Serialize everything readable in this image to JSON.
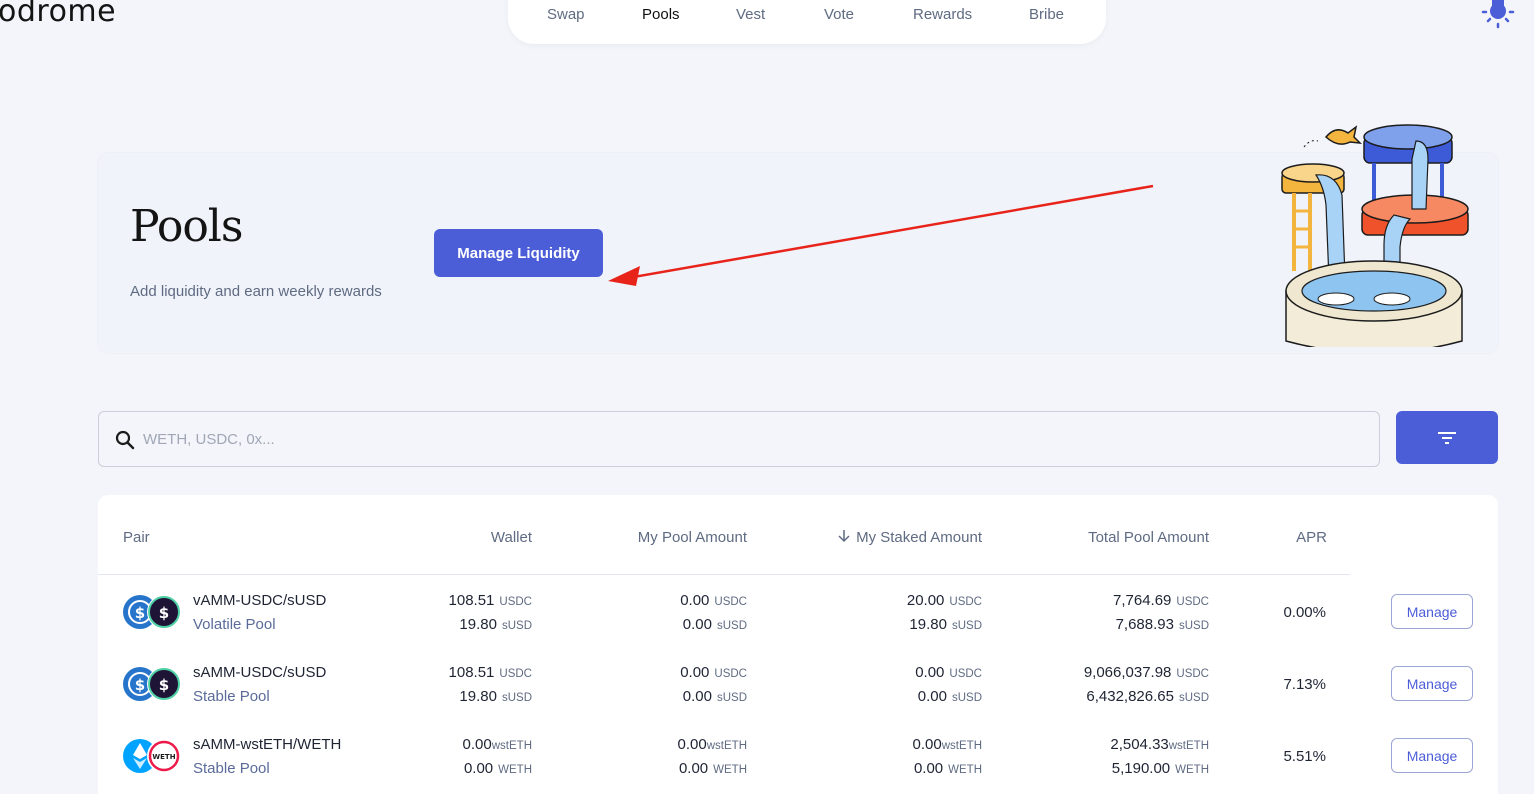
{
  "brand": {
    "logo_text": "odrome"
  },
  "nav": {
    "items": [
      "Swap",
      "Pools",
      "Vest",
      "Vote",
      "Rewards",
      "Bribe"
    ],
    "active": "Pools"
  },
  "hero": {
    "title": "Pools",
    "subtitle": "Add liquidity and earn weekly rewards",
    "button_label": "Manage Liquidity"
  },
  "search": {
    "placeholder": "WETH, USDC, 0x...",
    "value": ""
  },
  "table": {
    "columns": [
      "Pair",
      "Wallet",
      "My Pool Amount",
      "My Staked Amount",
      "Total Pool Amount",
      "APR"
    ],
    "sorted_column": "My Staked Amount",
    "rows": [
      {
        "pair": "vAMM-USDC/sUSD",
        "type": "Volatile Pool",
        "wallet": [
          [
            "108.51",
            "USDC"
          ],
          [
            "19.80",
            "sUSD"
          ]
        ],
        "pool": [
          [
            "0.00",
            "USDC"
          ],
          [
            "0.00",
            "sUSD"
          ]
        ],
        "staked": [
          [
            "20.00",
            "USDC"
          ],
          [
            "19.80",
            "sUSD"
          ]
        ],
        "total": [
          [
            "7,764.69",
            "USDC"
          ],
          [
            "7,688.93",
            "sUSD"
          ]
        ],
        "apr": "0.00%",
        "action": "Manage"
      },
      {
        "pair": "sAMM-USDC/sUSD",
        "type": "Stable Pool",
        "wallet": [
          [
            "108.51",
            "USDC"
          ],
          [
            "19.80",
            "sUSD"
          ]
        ],
        "pool": [
          [
            "0.00",
            "USDC"
          ],
          [
            "0.00",
            "sUSD"
          ]
        ],
        "staked": [
          [
            "0.00",
            "USDC"
          ],
          [
            "0.00",
            "sUSD"
          ]
        ],
        "total": [
          [
            "9,066,037.98",
            "USDC"
          ],
          [
            "6,432,826.65",
            "sUSD"
          ]
        ],
        "apr": "7.13%",
        "action": "Manage"
      },
      {
        "pair": "sAMM-wstETH/WETH",
        "type": "Stable Pool",
        "wallet": [
          [
            "0.00",
            "wstETH"
          ],
          [
            "0.00",
            "WETH"
          ]
        ],
        "pool": [
          [
            "0.00",
            "wstETH"
          ],
          [
            "0.00",
            "WETH"
          ]
        ],
        "staked": [
          [
            "0.00",
            "wstETH"
          ],
          [
            "0.00",
            "WETH"
          ]
        ],
        "total": [
          [
            "2,504.33",
            "wstETH"
          ],
          [
            "5,190.00",
            "WETH"
          ]
        ],
        "apr": "5.51%",
        "action": "Manage"
      }
    ]
  },
  "colors": {
    "accent": "#4b5ed8",
    "background": "#f3f5fa",
    "annotation_arrow": "#e8231a"
  }
}
